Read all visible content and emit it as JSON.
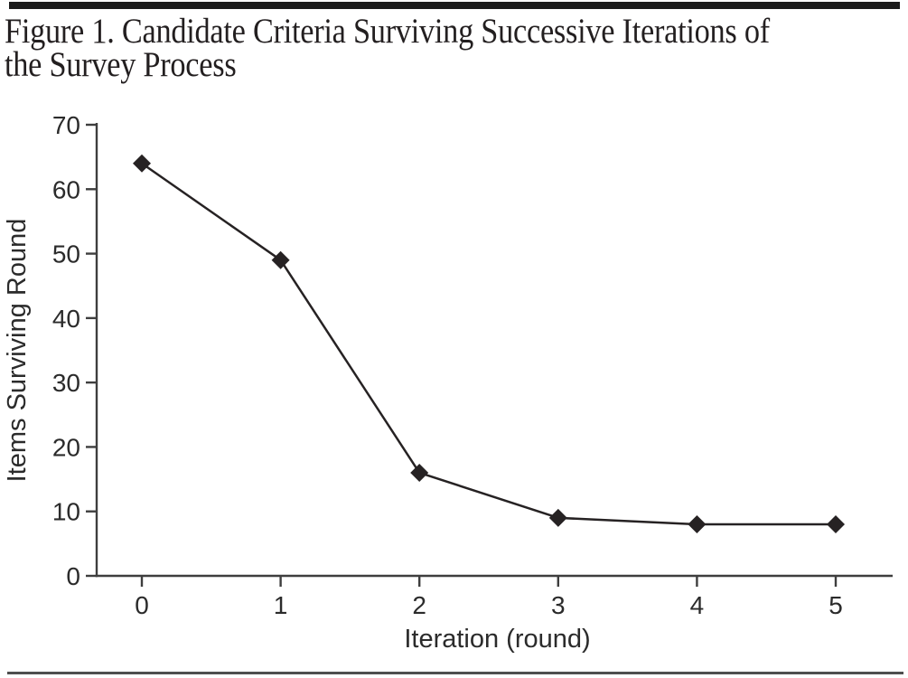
{
  "figure": {
    "title_line1": "Figure 1. Candidate Criteria Surviving Successive Iterations of",
    "title_line2": "the Survey Process"
  },
  "chart_data": {
    "type": "line",
    "title": "Figure 1. Candidate Criteria Surviving Successive Iterations of the Survey Process",
    "x": [
      0,
      1,
      2,
      3,
      4,
      5
    ],
    "x_tick_labels": [
      "0",
      "1",
      "2",
      "3",
      "4",
      "5"
    ],
    "series": [
      {
        "name": "Candidate criteria surviving",
        "values": [
          64,
          49,
          16,
          9,
          8,
          8
        ]
      }
    ],
    "xlabel": "Iteration (round)",
    "ylabel": "Items Surviving Round",
    "y_ticks": [
      0,
      10,
      20,
      30,
      40,
      50,
      60,
      70
    ],
    "y_tick_labels": [
      "0",
      "10",
      "20",
      "30",
      "40",
      "50",
      "60",
      "70"
    ],
    "ylim": [
      0,
      70
    ],
    "grid": false,
    "legend_position": "none",
    "marker": "diamond",
    "colors": {
      "line": "#262223",
      "marker": "#262223",
      "axis": "#3e3e3e",
      "tick_text": "#2b2b2b",
      "title_text": "#231f20",
      "top_rule": "#1c1c1c",
      "bottom_rule": "#4f4f4f"
    }
  }
}
